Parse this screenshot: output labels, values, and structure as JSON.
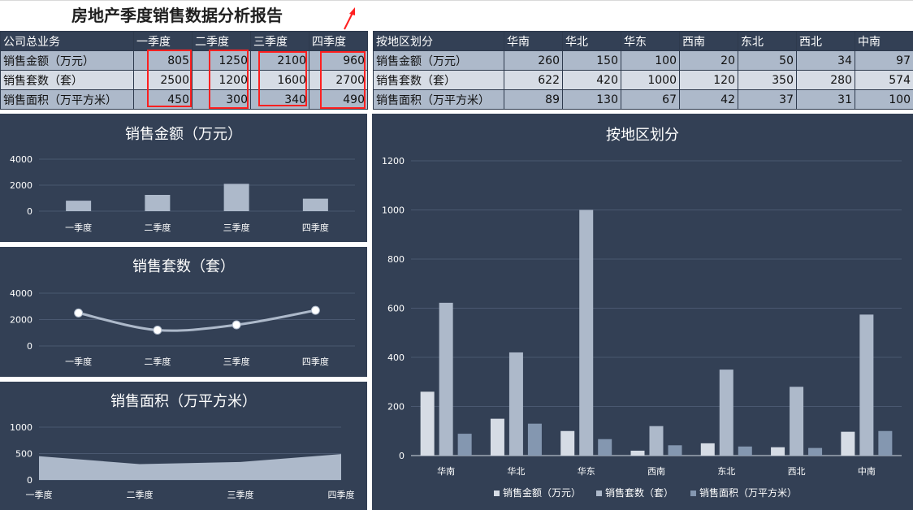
{
  "report_title": "房地产季度销售数据分析报告",
  "colors": {
    "panel_bg": "#334055",
    "series_amount": "#d6dce5",
    "series_units": "#adb9ca",
    "series_area": "#8497b0",
    "highlight": "#ff2020"
  },
  "quarter_table": {
    "corner": "公司总业务",
    "headers": [
      "一季度",
      "二季度",
      "三季度",
      "四季度"
    ],
    "rows": [
      {
        "label": "销售金额（万元）",
        "values": [
          "805",
          "1250",
          "2100",
          "960"
        ]
      },
      {
        "label": "销售套数（套）",
        "values": [
          "2500",
          "1200",
          "1600",
          "2700"
        ]
      },
      {
        "label": "销售面积（万平方米）",
        "values": [
          "450",
          "300",
          "340",
          "490"
        ]
      }
    ]
  },
  "region_table": {
    "corner": "按地区划分",
    "headers": [
      "华南",
      "华北",
      "华东",
      "西南",
      "东北",
      "西北",
      "中南"
    ],
    "rows": [
      {
        "label": "销售金额（万元）",
        "values": [
          "260",
          "150",
          "100",
          "20",
          "50",
          "34",
          "97"
        ]
      },
      {
        "label": "销售套数（套）",
        "values": [
          "622",
          "420",
          "1000",
          "120",
          "350",
          "280",
          "574"
        ]
      },
      {
        "label": "销售面积（万平方米）",
        "values": [
          "89",
          "130",
          "67",
          "42",
          "37",
          "31",
          "100"
        ]
      }
    ]
  },
  "chart_data": [
    {
      "type": "bar",
      "title": "销售金额（万元）",
      "categories": [
        "一季度",
        "二季度",
        "三季度",
        "四季度"
      ],
      "values": [
        805,
        1250,
        2100,
        960
      ],
      "ylim": [
        0,
        4000
      ],
      "yticks": [
        0,
        2000,
        4000
      ],
      "grid": true
    },
    {
      "type": "line",
      "title": "销售套数（套）",
      "categories": [
        "一季度",
        "二季度",
        "三季度",
        "四季度"
      ],
      "values": [
        2500,
        1200,
        1600,
        2700
      ],
      "ylim": [
        0,
        4000
      ],
      "yticks": [
        0,
        2000,
        4000
      ],
      "smooth": true,
      "grid": true
    },
    {
      "type": "area",
      "title": "销售面积（万平方米）",
      "categories": [
        "一季度",
        "二季度",
        "三季度",
        "四季度"
      ],
      "values": [
        450,
        300,
        340,
        490
      ],
      "ylim": [
        0,
        1000
      ],
      "yticks": [
        0,
        500,
        1000
      ],
      "grid": true
    },
    {
      "type": "bar",
      "title": "按地区划分",
      "categories": [
        "华南",
        "华北",
        "华东",
        "西南",
        "东北",
        "西北",
        "中南"
      ],
      "series": [
        {
          "name": "销售金额（万元）",
          "values": [
            260,
            150,
            100,
            20,
            50,
            34,
            97
          ]
        },
        {
          "name": "销售套数（套）",
          "values": [
            622,
            420,
            1000,
            120,
            350,
            280,
            574
          ]
        },
        {
          "name": "销售面积（万平方米）",
          "values": [
            89,
            130,
            67,
            42,
            37,
            31,
            100
          ]
        }
      ],
      "ylim": [
        0,
        1200
      ],
      "yticks": [
        0,
        200,
        400,
        600,
        800,
        1000,
        1200
      ],
      "legend": "bottom",
      "grid": true
    }
  ]
}
